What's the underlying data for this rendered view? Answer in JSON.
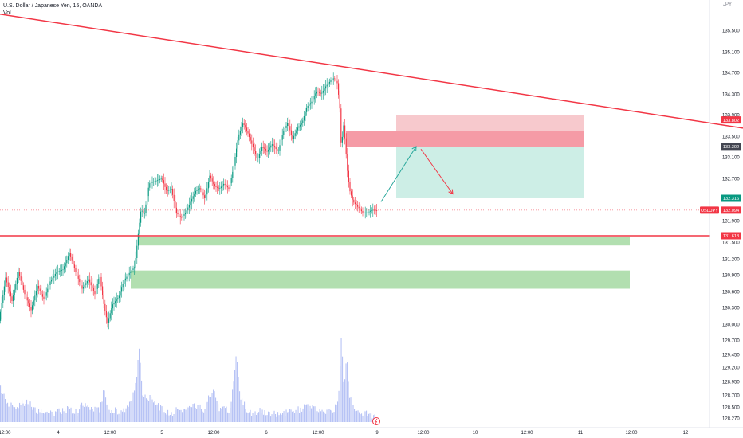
{
  "header": {
    "title": "U.S. Dollar / Japanese Yen, 15, OANDA",
    "indicator": "Vol"
  },
  "currency_label": "JPY",
  "chart_data": {
    "type": "candlestick",
    "symbol": "USDJPY",
    "interval": "15",
    "y_axis": {
      "ticks": [
        "135.500",
        "135.100",
        "134.700",
        "134.300",
        "133.900",
        "133.500",
        "133.100",
        "132.700",
        "132.300",
        "131.900",
        "131.500",
        "131.200",
        "130.900",
        "130.600",
        "130.300",
        "130.000",
        "129.700",
        "129.450",
        "129.200",
        "128.950",
        "128.700",
        "128.500",
        "128.270"
      ],
      "tick_values": [
        135.5,
        135.1,
        134.7,
        134.3,
        133.9,
        133.5,
        133.1,
        132.7,
        132.3,
        131.9,
        131.5,
        131.2,
        130.9,
        130.6,
        130.3,
        130.0,
        129.7,
        129.45,
        129.2,
        128.95,
        128.7,
        128.5,
        128.27
      ]
    },
    "x_axis": {
      "ticks": [
        "12:00",
        "4",
        "12:00",
        "5",
        "12:00",
        "6",
        "12:00",
        "9",
        "12:00",
        "10",
        "12:00",
        "11",
        "12:00",
        "12"
      ]
    },
    "price_labels": [
      {
        "text": "133.802",
        "value": 133.802,
        "color": "#f23645"
      },
      {
        "text": "133.302",
        "value": 133.302,
        "color": "#434651"
      },
      {
        "text": "132.316",
        "value": 132.316,
        "color": "#089981"
      },
      {
        "text": "USDJPY",
        "value": 132.094,
        "color": "#f23645"
      },
      {
        "text": "132.094",
        "value": 132.094,
        "color": "#f23645"
      },
      {
        "text": "131.618",
        "value": 131.618,
        "color": "#f23645"
      }
    ],
    "price_path": [
      [
        0,
        130.06
      ],
      [
        8,
        130.85
      ],
      [
        16,
        130.42
      ],
      [
        24,
        130.95
      ],
      [
        32,
        130.55
      ],
      [
        40,
        130.25
      ],
      [
        48,
        130.7
      ],
      [
        56,
        130.45
      ],
      [
        64,
        130.78
      ],
      [
        72,
        130.95
      ],
      [
        80,
        131.0
      ],
      [
        88,
        131.3
      ],
      [
        96,
        130.95
      ],
      [
        104,
        130.65
      ],
      [
        112,
        130.82
      ],
      [
        120,
        130.55
      ],
      [
        126,
        130.9
      ],
      [
        132,
        130.28
      ],
      [
        136,
        130.02
      ],
      [
        142,
        130.35
      ],
      [
        150,
        130.5
      ],
      [
        156,
        130.78
      ],
      [
        164,
        130.95
      ],
      [
        170,
        131.05
      ],
      [
        174,
        131.6
      ],
      [
        178,
        132.12
      ],
      [
        182,
        132.0
      ],
      [
        188,
        132.6
      ],
      [
        196,
        132.65
      ],
      [
        204,
        132.7
      ],
      [
        210,
        132.45
      ],
      [
        216,
        132.5
      ],
      [
        222,
        132.05
      ],
      [
        228,
        131.95
      ],
      [
        234,
        132.05
      ],
      [
        240,
        132.25
      ],
      [
        246,
        132.45
      ],
      [
        252,
        132.52
      ],
      [
        258,
        132.3
      ],
      [
        264,
        132.75
      ],
      [
        270,
        132.55
      ],
      [
        276,
        132.5
      ],
      [
        282,
        132.6
      ],
      [
        288,
        132.5
      ],
      [
        294,
        132.9
      ],
      [
        300,
        133.5
      ],
      [
        306,
        133.75
      ],
      [
        312,
        133.55
      ],
      [
        318,
        133.3
      ],
      [
        324,
        133.05
      ],
      [
        330,
        133.3
      ],
      [
        336,
        133.2
      ],
      [
        342,
        133.35
      ],
      [
        350,
        133.2
      ],
      [
        356,
        133.58
      ],
      [
        362,
        133.75
      ],
      [
        368,
        133.45
      ],
      [
        374,
        133.65
      ],
      [
        380,
        133.75
      ],
      [
        386,
        134.05
      ],
      [
        392,
        134.15
      ],
      [
        398,
        134.35
      ],
      [
        404,
        134.3
      ],
      [
        410,
        134.45
      ],
      [
        416,
        134.55
      ],
      [
        420,
        134.6
      ],
      [
        424,
        134.5
      ],
      [
        427,
        134.1
      ],
      [
        429,
        133.3
      ],
      [
        432,
        133.7
      ],
      [
        434,
        133.4
      ],
      [
        437,
        132.8
      ],
      [
        440,
        132.45
      ],
      [
        444,
        132.25
      ],
      [
        450,
        132.15
      ],
      [
        456,
        132.05
      ],
      [
        462,
        132.05
      ],
      [
        468,
        132.1
      ],
      [
        473,
        132.09
      ]
    ],
    "volume_path": [
      [
        0,
        128.8
      ],
      [
        10,
        128.55
      ],
      [
        22,
        128.5
      ],
      [
        34,
        128.62
      ],
      [
        46,
        128.42
      ],
      [
        60,
        128.33
      ],
      [
        72,
        128.4
      ],
      [
        84,
        128.45
      ],
      [
        96,
        128.38
      ],
      [
        104,
        128.56
      ],
      [
        114,
        128.5
      ],
      [
        124,
        128.42
      ],
      [
        130,
        128.82
      ],
      [
        136,
        128.44
      ],
      [
        150,
        128.41
      ],
      [
        164,
        128.55
      ],
      [
        170,
        128.9
      ],
      [
        174,
        129.55
      ],
      [
        178,
        128.75
      ],
      [
        186,
        128.65
      ],
      [
        198,
        128.52
      ],
      [
        212,
        128.38
      ],
      [
        226,
        128.44
      ],
      [
        240,
        128.52
      ],
      [
        256,
        128.46
      ],
      [
        266,
        128.8
      ],
      [
        274,
        128.48
      ],
      [
        288,
        128.44
      ],
      [
        296,
        129.4
      ],
      [
        300,
        128.72
      ],
      [
        312,
        128.38
      ],
      [
        326,
        128.42
      ],
      [
        340,
        128.36
      ],
      [
        356,
        128.35
      ],
      [
        372,
        128.44
      ],
      [
        386,
        128.5
      ],
      [
        400,
        128.43
      ],
      [
        416,
        128.4
      ],
      [
        424,
        128.65
      ],
      [
        428,
        129.83
      ],
      [
        431,
        128.7
      ],
      [
        434,
        129.4
      ],
      [
        438,
        128.68
      ],
      [
        444,
        128.5
      ],
      [
        452,
        128.4
      ],
      [
        462,
        128.35
      ],
      [
        472,
        128.3
      ]
    ],
    "trend_line": {
      "from": [
        0,
        135.8
      ],
      "to": [
        932,
        133.65
      ],
      "color": "#f23645"
    },
    "horizontal_line": {
      "value": 131.618,
      "color": "#f23645"
    },
    "support_zones": [
      {
        "top": 131.6,
        "bottom": 131.44,
        "x0": 174,
        "x1": 790,
        "color": "#b2dfb0"
      },
      {
        "top": 130.98,
        "bottom": 130.65,
        "x0": 164,
        "x1": 790,
        "color": "#b2dfb0"
      }
    ],
    "position": {
      "x0": 497,
      "x1": 733,
      "stop_top": 133.9,
      "entry": 133.302,
      "target": 132.316,
      "stop_color": "#f7c9cd",
      "target_color": "#cdeee6"
    },
    "resistance_zone": {
      "top": 133.6,
      "bottom": 133.3,
      "x0": 434,
      "x1": 733,
      "color": "#f59ba6"
    },
    "arrows": [
      {
        "from": [
          478,
          132.25
        ],
        "to": [
          522,
          133.3
        ],
        "color": "#26a69a"
      },
      {
        "from": [
          528,
          133.25
        ],
        "to": [
          568,
          132.4
        ],
        "color": "#f23645"
      }
    ],
    "x_range": [
      0,
      890
    ],
    "y_range": [
      128.15,
      135.9
    ],
    "grid": false,
    "legend": "none"
  }
}
